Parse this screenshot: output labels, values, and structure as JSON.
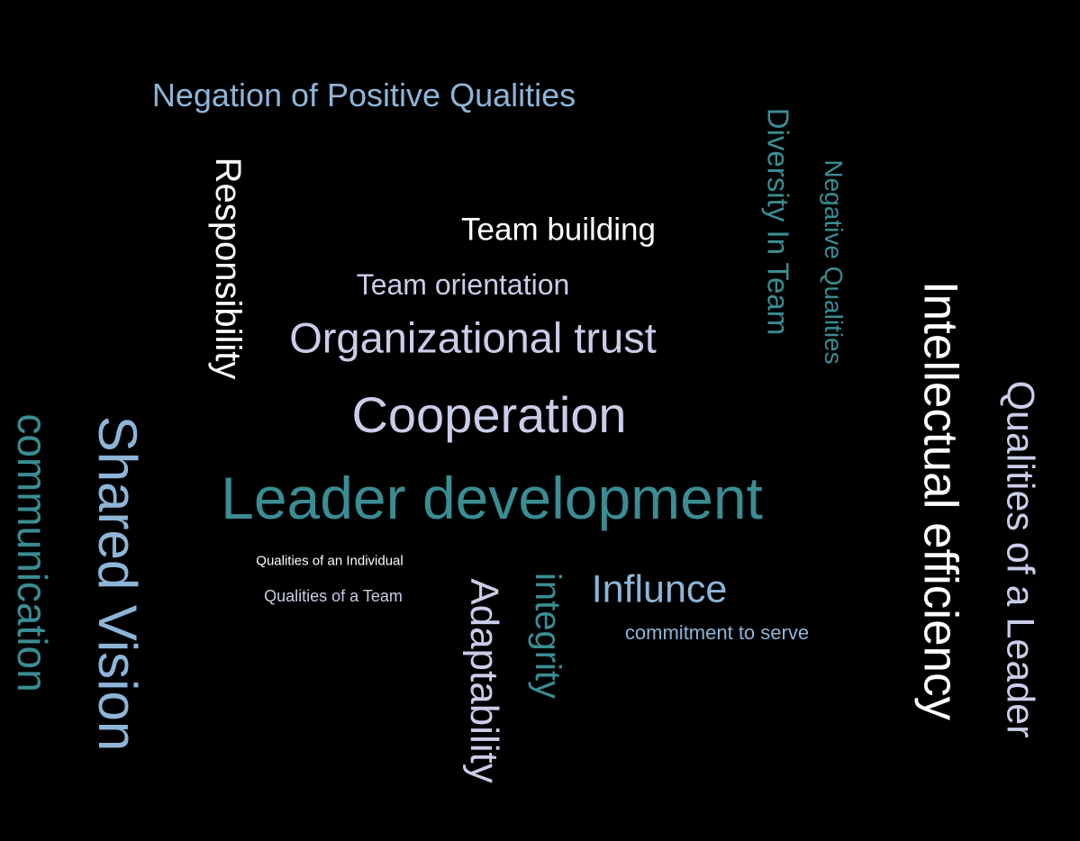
{
  "word_cloud": {
    "background": "#000000",
    "palette": {
      "white": "#ffffff",
      "light_lavender": "#c9cde8",
      "light_blue": "#8db5d8",
      "teal": "#3a8d93"
    },
    "words": {
      "negation_of_positive_qualities": "Negation of Positive Qualities",
      "diversity_in_team": "Diversity In Team",
      "negative_qualities": "Negative Qualities",
      "responsibility": "Responsibility",
      "team_building": "Team building",
      "team_orientation": "Team orientation",
      "organizational_trust": "Organizational trust",
      "intellectual_efficiency": "Intellectual efficiency",
      "qualities_of_a_leader": "Qualities of a Leader",
      "cooperation": "Cooperation",
      "leader_development": "Leader development",
      "communication": "communication",
      "shared_vision": "Shared Vision",
      "qualities_of_an_individual": "Qualities of an Individual",
      "qualities_of_a_team": "Qualities of a Team",
      "adaptability": "Adaptability",
      "integrity": "integrity",
      "influnce": "Influnce",
      "commitment_to_serve": "commitment to serve"
    }
  }
}
